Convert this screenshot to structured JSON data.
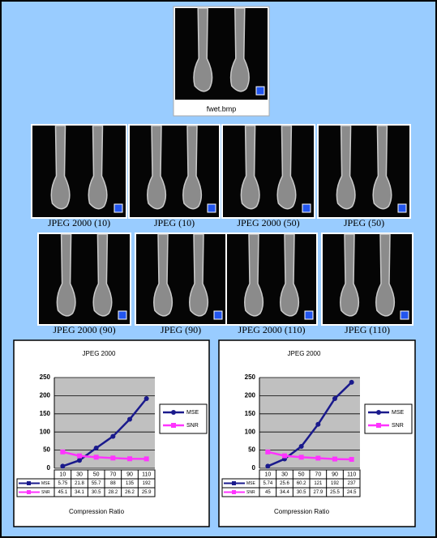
{
  "images": [
    {
      "label": "fwet.bmp"
    },
    {
      "label": "JPEG 2000 (10)"
    },
    {
      "label": "JPEG (10)"
    },
    {
      "label": "JPEG 2000 (50)"
    },
    {
      "label": "JPEG (50)"
    },
    {
      "label": "JPEG 2000 (90)"
    },
    {
      "label": "JPEG (90)"
    },
    {
      "label": "JPEG 2000 (110)"
    },
    {
      "label": "JPEG (110)"
    }
  ],
  "chart_data": [
    {
      "type": "line",
      "title": "JPEG 2000",
      "x_label": "Compression Ratio",
      "categories": [
        "10",
        "30",
        "50",
        "70",
        "90",
        "110"
      ],
      "series": [
        {
          "name": "MSE",
          "color": "#1a1a8c",
          "values": [
            5.75,
            21.8,
            55.7,
            88,
            135,
            192
          ]
        },
        {
          "name": "SNR",
          "color": "#ff33ff",
          "values": [
            45.1,
            34.1,
            30.5,
            28.2,
            26.2,
            25.9
          ]
        }
      ],
      "ylim": [
        0,
        250
      ],
      "yticks": [
        0,
        50,
        100,
        150,
        200,
        250
      ],
      "grid": true,
      "legend": "right"
    },
    {
      "type": "line",
      "title": "JPEG 2000",
      "x_label": "Compression Ratio",
      "categories": [
        "10",
        "30",
        "50",
        "70",
        "90",
        "110"
      ],
      "series": [
        {
          "name": "MSE",
          "color": "#1a1a8c",
          "values": [
            5.74,
            25.6,
            60.2,
            121,
            192,
            237
          ]
        },
        {
          "name": "SNR",
          "color": "#ff33ff",
          "values": [
            45,
            34.4,
            30.5,
            27.9,
            25.5,
            24.5
          ]
        }
      ],
      "ylim": [
        0,
        250
      ],
      "yticks": [
        0,
        50,
        100,
        150,
        200,
        250
      ],
      "grid": true,
      "legend": "right"
    }
  ]
}
